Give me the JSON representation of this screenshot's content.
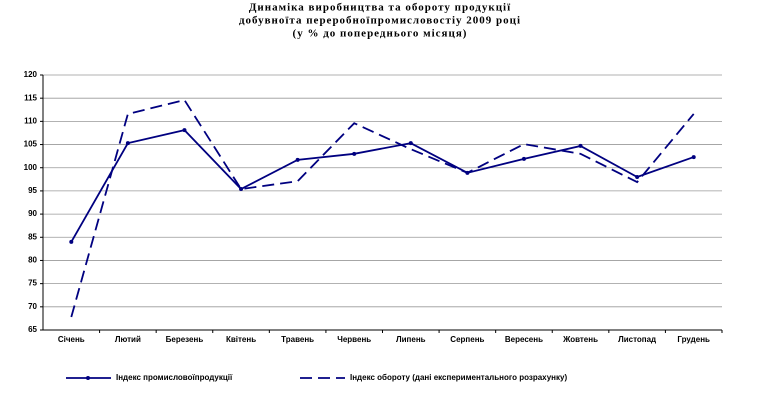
{
  "chart_data": {
    "type": "line",
    "title": [
      "Динаміка виробництва та обороту продукції",
      "добувноїта переробноїпромисловостіу 2009 році",
      "(у % до попереднього місяця)"
    ],
    "categories": [
      "Січень",
      "Лютий",
      "Березень",
      "Квітень",
      "Травень",
      "Червень",
      "Липень",
      "Серпень",
      "Вересень",
      "Жовтень",
      "Листопад",
      "Грудень"
    ],
    "series": [
      {
        "name": "Індекс промисловоїпродукції",
        "color": "#000080",
        "dash": false,
        "marker": true,
        "values": [
          84,
          105.3,
          108.1,
          95.4,
          101.7,
          103,
          105.3,
          98.9,
          101.9,
          104.7,
          98,
          102.3
        ]
      },
      {
        "name": "Індекс обороту (дані експериментального розрахунку)",
        "color": "#000080",
        "dash": true,
        "marker": false,
        "values": [
          67.8,
          111.6,
          114.6,
          95.4,
          97.1,
          109.6,
          104,
          98.9,
          105.1,
          103,
          96.9,
          111.6
        ]
      }
    ],
    "ylim": [
      65,
      120
    ],
    "yticks": [
      65,
      70,
      75,
      80,
      85,
      90,
      95,
      100,
      105,
      110,
      115,
      120
    ],
    "grid": true,
    "legend": "bottom"
  }
}
